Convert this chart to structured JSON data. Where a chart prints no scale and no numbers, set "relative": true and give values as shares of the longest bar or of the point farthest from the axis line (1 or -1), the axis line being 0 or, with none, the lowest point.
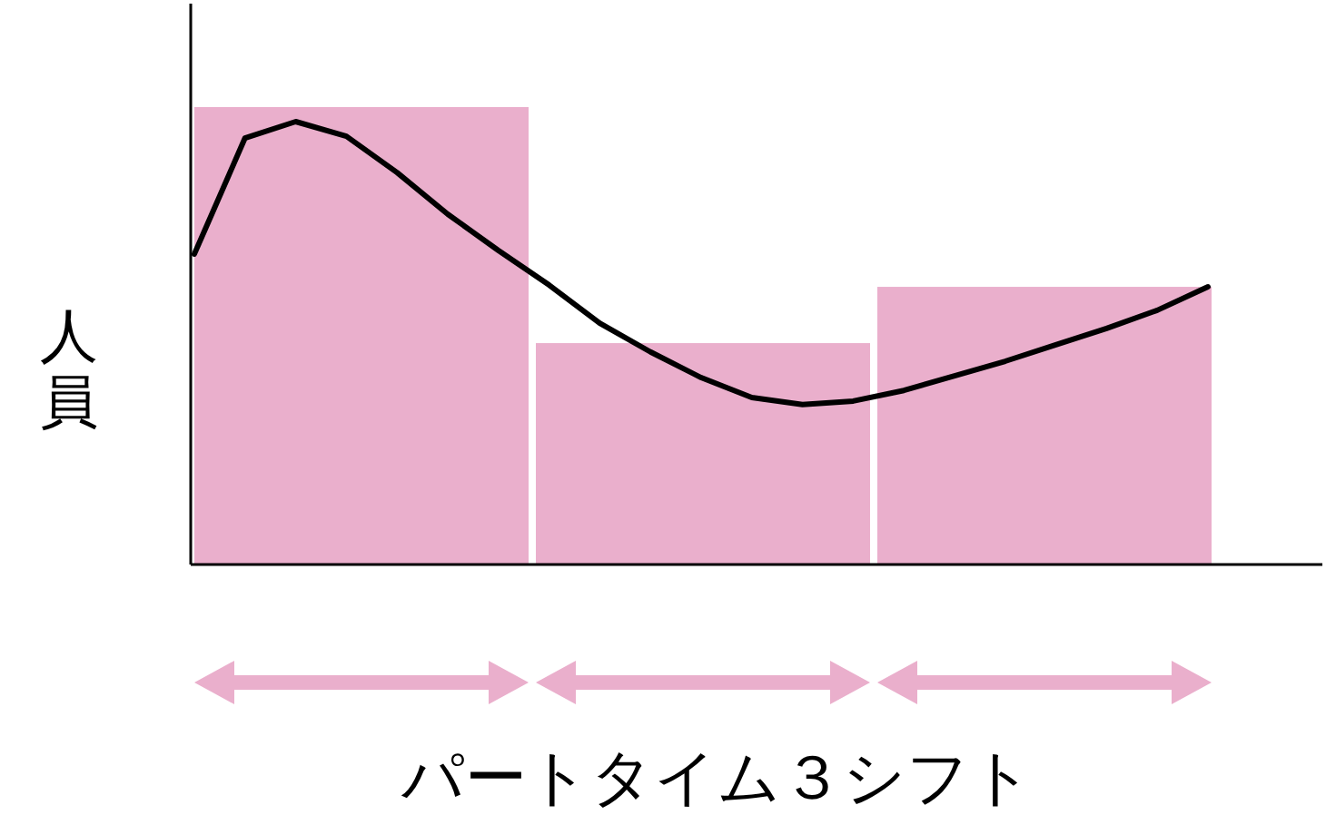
{
  "chart_data": [
    {
      "type": "bar",
      "relative": true,
      "xlabel": "パートタイム３シフト",
      "ylabel": "人員",
      "categories": [
        null,
        null,
        null
      ],
      "color": "#eaafcc",
      "values": [
        1,
        0.484,
        0.607
      ]
    },
    {
      "type": "line",
      "relative": true,
      "color": "#000000",
      "categories": [
        null,
        null,
        null,
        null,
        null,
        null,
        null,
        null,
        null,
        null,
        null,
        null,
        null,
        null,
        null,
        null,
        null,
        null,
        null,
        null,
        null
      ],
      "values": [
        0.701,
        0.963,
        1,
        0.967,
        0.885,
        0.791,
        0.709,
        0.631,
        0.545,
        0.48,
        0.422,
        0.377,
        0.361,
        0.369,
        0.393,
        0.426,
        0.459,
        0.496,
        0.533,
        0.574,
        0.627
      ]
    }
  ]
}
